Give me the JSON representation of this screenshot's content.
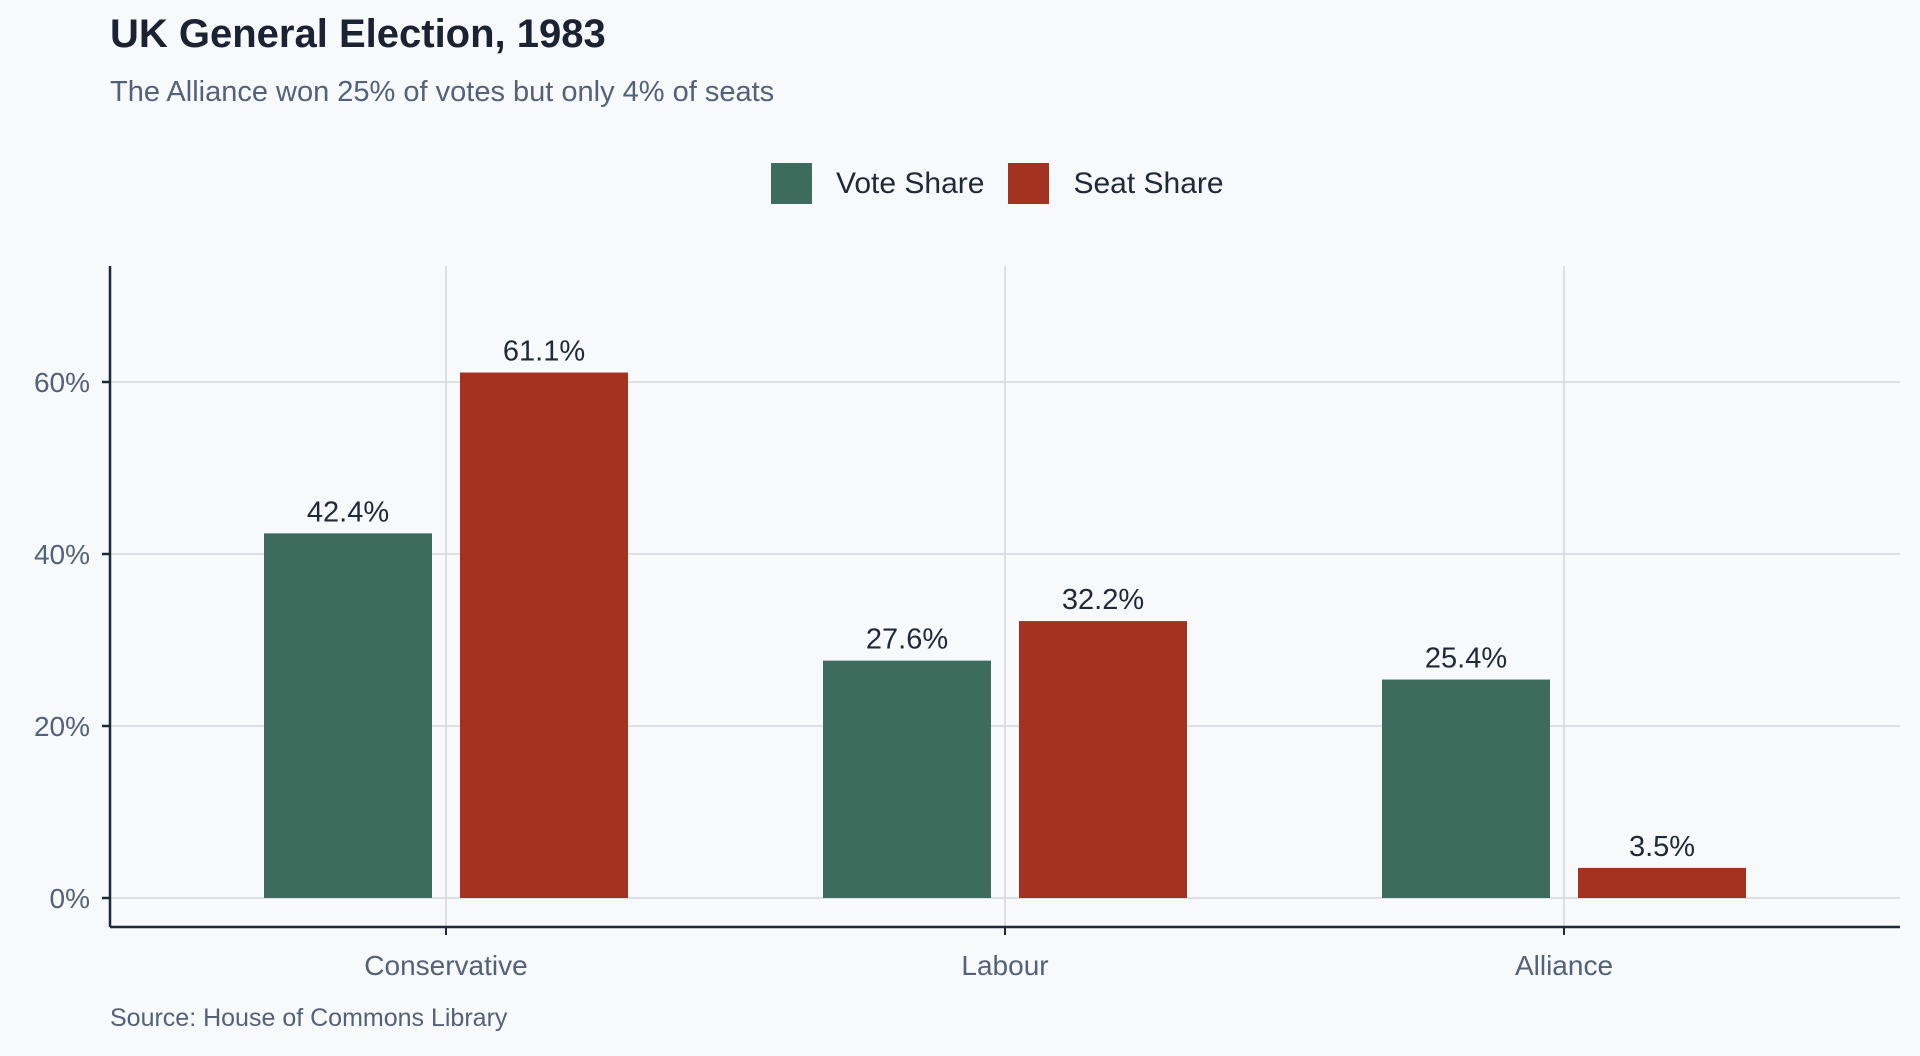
{
  "chart_data": {
    "type": "bar",
    "title": "UK General Election, 1983",
    "subtitle": "The Alliance won 25% of votes but only 4% of seats",
    "categories": [
      "Conservative",
      "Labour",
      "Alliance"
    ],
    "series": [
      {
        "name": "Vote Share",
        "color": "#3d6b5c",
        "values": [
          42.4,
          27.6,
          25.4
        ]
      },
      {
        "name": "Seat Share",
        "color": "#a33220",
        "values": [
          61.1,
          32.2,
          3.5
        ]
      }
    ],
    "data_labels": [
      [
        "42.4%",
        "27.6%",
        "25.4%"
      ],
      [
        "61.1%",
        "32.2%",
        "3.5%"
      ]
    ],
    "xlabel": "",
    "ylabel": "",
    "ylim": [
      0,
      73.5
    ],
    "yticks": [
      0,
      20,
      40,
      60
    ],
    "ytick_labels": [
      "0%",
      "20%",
      "40%",
      "60%"
    ],
    "grid": true,
    "legend_position": "top-center",
    "source": "Source: House of Commons Library"
  }
}
